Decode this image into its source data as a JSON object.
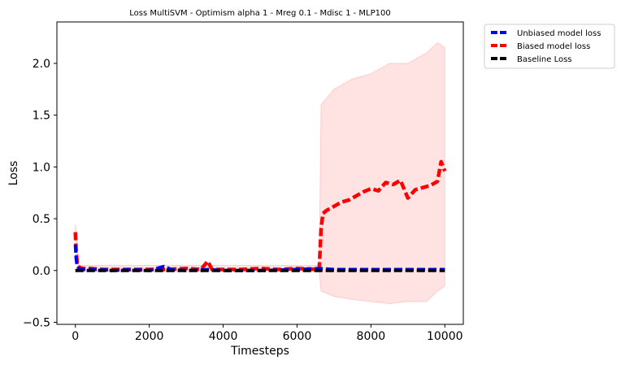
{
  "chart_data": {
    "type": "line",
    "title": "Loss MultiSVM - Optimism alpha 1 - Mreg 0.1 - Mdisc 1 - MLP100",
    "xlabel": "Timesteps",
    "ylabel": "Loss",
    "xlim": [
      -500,
      10500
    ],
    "ylim": [
      -0.52,
      2.4
    ],
    "xticks": [
      0,
      2000,
      4000,
      6000,
      8000,
      10000
    ],
    "xtick_labels": [
      "0",
      "2000",
      "4000",
      "6000",
      "8000",
      "10000"
    ],
    "yticks": [
      -0.5,
      0.0,
      0.5,
      1.0,
      1.5,
      2.0
    ],
    "ytick_labels": [
      "−0.5",
      "0.0",
      "0.5",
      "1.0",
      "1.5",
      "2.0"
    ],
    "grid": false,
    "legend_position": "outside upper right",
    "series": [
      {
        "name": "Unbiased model loss",
        "color": "#0000ff",
        "style": "dashed",
        "x": [
          0,
          20,
          50,
          100,
          200,
          400,
          700,
          1000,
          1500,
          2000,
          2400,
          2600,
          3000,
          3600,
          4000,
          5000,
          6000,
          6600,
          7000,
          7500,
          8000,
          8500,
          9000,
          9500,
          10000
        ],
        "y": [
          0.25,
          0.12,
          0.04,
          0.02,
          0.01,
          0.01,
          0.01,
          0.0,
          0.01,
          0.0,
          0.04,
          0.01,
          0.0,
          0.01,
          0.0,
          0.0,
          0.01,
          0.02,
          0.01,
          0.01,
          0.01,
          0.01,
          0.01,
          0.01,
          0.01
        ]
      },
      {
        "name": "Biased model loss",
        "color": "#ff0000",
        "style": "dashed",
        "x": [
          0,
          20,
          50,
          100,
          200,
          400,
          700,
          1000,
          1500,
          2000,
          2500,
          3000,
          3400,
          3580,
          3700,
          4000,
          4500,
          5000,
          5500,
          6000,
          6600,
          6650,
          6700,
          6800,
          7000,
          7200,
          7400,
          7600,
          7800,
          8000,
          8200,
          8400,
          8600,
          8800,
          9000,
          9200,
          9400,
          9600,
          9800,
          9900,
          10000
        ],
        "y": [
          0.37,
          0.2,
          0.06,
          0.03,
          0.02,
          0.02,
          0.01,
          0.01,
          0.01,
          0.01,
          0.01,
          0.02,
          0.01,
          0.09,
          0.01,
          0.01,
          0.01,
          0.02,
          0.01,
          0.02,
          0.01,
          0.4,
          0.55,
          0.58,
          0.62,
          0.66,
          0.68,
          0.72,
          0.76,
          0.79,
          0.77,
          0.85,
          0.83,
          0.87,
          0.7,
          0.78,
          0.8,
          0.82,
          0.86,
          1.05,
          0.96
        ]
      },
      {
        "name": "Baseline Loss",
        "color": "#000000",
        "style": "dashed",
        "x": [
          0,
          10000
        ],
        "y": [
          0.0,
          0.0
        ]
      }
    ],
    "bands": [
      {
        "series": "Biased model loss",
        "color": "#ff0000",
        "x": [
          0,
          100,
          6600,
          6650,
          7000,
          7500,
          8000,
          8500,
          9000,
          9500,
          9800,
          10000
        ],
        "upper": [
          0.45,
          0.05,
          0.05,
          1.6,
          1.75,
          1.85,
          1.9,
          2.0,
          2.0,
          2.1,
          2.2,
          2.15
        ],
        "lower": [
          0.3,
          -0.01,
          -0.01,
          -0.2,
          -0.25,
          -0.28,
          -0.3,
          -0.32,
          -0.3,
          -0.3,
          -0.2,
          -0.15
        ]
      }
    ]
  }
}
